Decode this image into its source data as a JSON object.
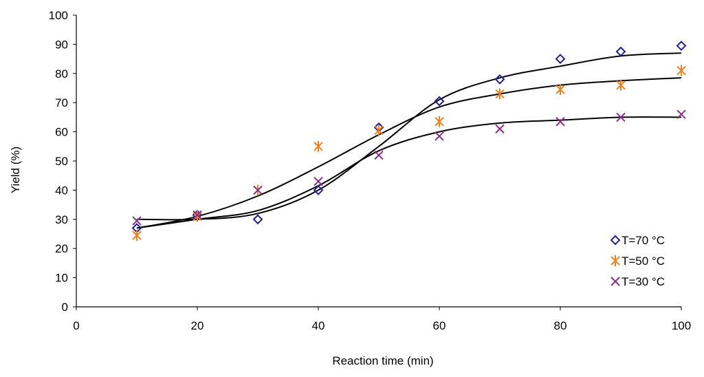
{
  "chart_data": {
    "type": "scatter",
    "title": "",
    "xlabel": "Reaction time  (min)",
    "ylabel": "Yield (%)",
    "xlim": [
      0,
      100
    ],
    "ylim": [
      0,
      100
    ],
    "x_ticks": [
      0,
      20,
      40,
      60,
      80,
      100
    ],
    "y_ticks": [
      0,
      10,
      20,
      30,
      40,
      50,
      60,
      70,
      80,
      90,
      100
    ],
    "grid": false,
    "legend_position": "bottom-right",
    "series": [
      {
        "name": "T=70 °C",
        "marker": "diamond",
        "color": "#1f1f8f",
        "points": [
          [
            10,
            27
          ],
          [
            20,
            31.5
          ],
          [
            30,
            30
          ],
          [
            40,
            40
          ],
          [
            50,
            61.5
          ],
          [
            60,
            70.5
          ],
          [
            70,
            78
          ],
          [
            80,
            85
          ],
          [
            90,
            87.5
          ],
          [
            100,
            89.5
          ]
        ],
        "trend": [
          [
            10,
            30
          ],
          [
            20,
            30
          ],
          [
            30,
            32
          ],
          [
            40,
            40
          ],
          [
            50,
            55
          ],
          [
            60,
            71
          ],
          [
            70,
            78.5
          ],
          [
            80,
            82.5
          ],
          [
            90,
            86
          ],
          [
            100,
            87
          ]
        ]
      },
      {
        "name": "T=50 °C",
        "marker": "asterisk",
        "color": "#f07f1f",
        "points": [
          [
            10,
            24.5
          ],
          [
            20,
            31
          ],
          [
            30,
            40
          ],
          [
            40,
            55
          ],
          [
            50,
            60.5
          ],
          [
            60,
            63.5
          ],
          [
            70,
            73
          ],
          [
            80,
            74.5
          ],
          [
            90,
            76
          ],
          [
            100,
            81
          ]
        ],
        "trend": [
          [
            10,
            27
          ],
          [
            20,
            31
          ],
          [
            30,
            38
          ],
          [
            40,
            48
          ],
          [
            50,
            59
          ],
          [
            60,
            68.5
          ],
          [
            70,
            73
          ],
          [
            80,
            76
          ],
          [
            90,
            77.5
          ],
          [
            100,
            78.5
          ]
        ]
      },
      {
        "name": "T=30 °C",
        "marker": "cross",
        "color": "#8b2c8f",
        "points": [
          [
            10,
            29.5
          ],
          [
            20,
            31.5
          ],
          [
            30,
            40
          ],
          [
            40,
            43
          ],
          [
            50,
            52
          ],
          [
            60,
            58.5
          ],
          [
            70,
            61
          ],
          [
            80,
            63.5
          ],
          [
            90,
            65
          ],
          [
            100,
            66
          ]
        ],
        "trend": [
          [
            10,
            27
          ],
          [
            20,
            30
          ],
          [
            30,
            33
          ],
          [
            40,
            41.5
          ],
          [
            50,
            53.5
          ],
          [
            60,
            60
          ],
          [
            70,
            63
          ],
          [
            80,
            64
          ],
          [
            90,
            65
          ],
          [
            100,
            65
          ]
        ]
      }
    ]
  }
}
